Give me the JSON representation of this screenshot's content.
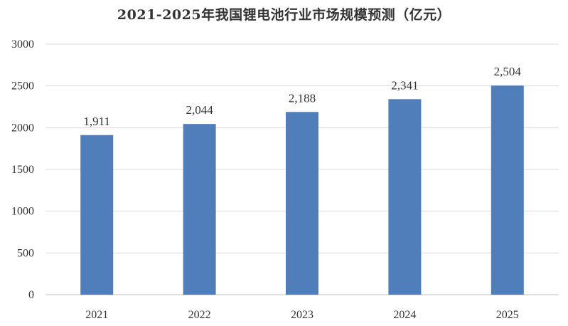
{
  "chart_data": {
    "type": "bar",
    "title": "2021-2025年我国锂电池行业市场规模预测（亿元）",
    "categories": [
      "2021",
      "2022",
      "2023",
      "2024",
      "2025"
    ],
    "values": [
      1911,
      2044,
      2188,
      2341,
      2504
    ],
    "data_labels": [
      "1,911",
      "2,044",
      "2,188",
      "2,341",
      "2,504"
    ],
    "y_ticks": [
      0,
      500,
      1000,
      1500,
      2000,
      2500,
      3000
    ],
    "ylim": [
      0,
      3000
    ],
    "xlabel": "",
    "ylabel": "",
    "grid": true,
    "bar_color": "#4f7ebb"
  }
}
